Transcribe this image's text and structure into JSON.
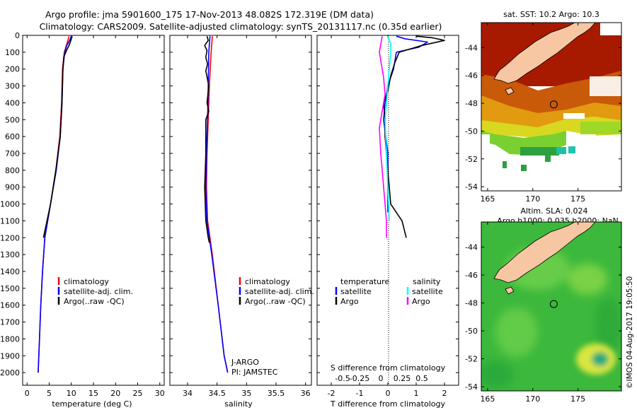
{
  "title_line1": "Argo profile: jma 5901600_175 17-Nov-2013 48.082S 172.319E (DM data)",
  "title_line2": "Climatology: CARS2009. Satellite-adjusted climatology: synTS_20131117.nc (0.35d earlier)",
  "colors": {
    "clim": "#ff0000",
    "sat": "#0000ff",
    "argo": "#000000",
    "sal_sat": "#00ffff",
    "sal_argo": "#ff00ff"
  },
  "chart_data": [
    {
      "id": "temperature",
      "type": "line",
      "xlabel": "temperature (deg C)",
      "xlim": [
        -1,
        31
      ],
      "xticks": [
        "0",
        "5",
        "10",
        "15",
        "20",
        "25",
        "30"
      ],
      "xtick_values": [
        0,
        5,
        10,
        15,
        20,
        25,
        30
      ],
      "ylim": [
        0,
        2075
      ],
      "yticks": [
        "0",
        "100",
        "200",
        "300",
        "400",
        "500",
        "600",
        "700",
        "800",
        "900",
        "1000",
        "1100",
        "1200",
        "1300",
        "1400",
        "1500",
        "1600",
        "1700",
        "1800",
        "1900",
        "2000"
      ],
      "ytick_values": [
        0,
        100,
        200,
        300,
        400,
        500,
        600,
        700,
        800,
        900,
        1000,
        1100,
        1200,
        1300,
        1400,
        1500,
        1600,
        1700,
        1800,
        1900,
        2000
      ],
      "legend": [
        "climatology",
        "satellite-adj. clim.",
        "Argo(..raw -QC)"
      ],
      "series": [
        {
          "name": "climatology",
          "color": "#ff0000",
          "points": [
            [
              9.5,
              5
            ],
            [
              9.0,
              50
            ],
            [
              8.4,
              100
            ],
            [
              8.0,
              200
            ],
            [
              7.8,
              400
            ],
            [
              7.4,
              600
            ],
            [
              6.5,
              800
            ],
            [
              5.3,
              1000
            ],
            [
              4.0,
              1200
            ],
            [
              3.5,
              1400
            ],
            [
              3.1,
              1600
            ],
            [
              2.8,
              1800
            ],
            [
              2.5,
              2000
            ]
          ]
        },
        {
          "name": "satellite-adj. clim.",
          "color": "#0000ff",
          "points": [
            [
              10.0,
              5
            ],
            [
              9.6,
              30
            ],
            [
              9.0,
              60
            ],
            [
              8.5,
              100
            ],
            [
              8.1,
              200
            ],
            [
              7.9,
              400
            ],
            [
              7.5,
              600
            ],
            [
              6.6,
              800
            ],
            [
              5.3,
              1000
            ],
            [
              4.0,
              1200
            ],
            [
              3.5,
              1400
            ],
            [
              3.1,
              1600
            ],
            [
              2.8,
              1800
            ],
            [
              2.5,
              2000
            ]
          ]
        },
        {
          "name": "Argo(..raw -QC)",
          "color": "#000000",
          "points": [
            [
              10.2,
              5
            ],
            [
              9.9,
              30
            ],
            [
              9.5,
              60
            ],
            [
              8.9,
              90
            ],
            [
              8.3,
              130
            ],
            [
              8.1,
              200
            ],
            [
              7.9,
              400
            ],
            [
              7.5,
              600
            ],
            [
              6.5,
              800
            ],
            [
              5.3,
              1000
            ],
            [
              4.1,
              1150
            ],
            [
              3.7,
              1200
            ]
          ]
        }
      ]
    },
    {
      "id": "salinity",
      "type": "line",
      "xlabel": "salinity",
      "xlim": [
        33.7,
        36.1
      ],
      "xticks": [
        "34",
        "34.5",
        "35",
        "35.5",
        "36"
      ],
      "xtick_values": [
        34,
        34.5,
        35,
        35.5,
        36
      ],
      "ylim": [
        0,
        2075
      ],
      "legend": [
        "climatology",
        "satellite-adj. clim.",
        "Argo(..raw -QC)"
      ],
      "annotation": [
        "J-ARGO",
        "PI: JAMSTEC"
      ],
      "series": [
        {
          "name": "climatology",
          "color": "#ff0000",
          "points": [
            [
              34.42,
              5
            ],
            [
              34.4,
              100
            ],
            [
              34.37,
              300
            ],
            [
              34.35,
              500
            ],
            [
              34.33,
              700
            ],
            [
              34.32,
              900
            ],
            [
              34.34,
              1100
            ],
            [
              34.42,
              1300
            ],
            [
              34.52,
              1600
            ],
            [
              34.62,
              1900
            ],
            [
              34.68,
              2000
            ]
          ]
        },
        {
          "name": "satellite-adj. clim.",
          "color": "#0000ff",
          "points": [
            [
              34.38,
              5
            ],
            [
              34.36,
              100
            ],
            [
              34.35,
              300
            ],
            [
              34.34,
              500
            ],
            [
              34.32,
              700
            ],
            [
              34.31,
              900
            ],
            [
              34.33,
              1100
            ],
            [
              34.41,
              1300
            ],
            [
              34.52,
              1600
            ],
            [
              34.62,
              1900
            ],
            [
              34.68,
              2000
            ]
          ]
        },
        {
          "name": "Argo(..raw -QC)",
          "color": "#000000",
          "points": [
            [
              34.33,
              5
            ],
            [
              34.35,
              30
            ],
            [
              34.29,
              60
            ],
            [
              34.33,
              90
            ],
            [
              34.31,
              130
            ],
            [
              34.34,
              170
            ],
            [
              34.31,
              210
            ],
            [
              34.36,
              300
            ],
            [
              34.33,
              400
            ],
            [
              34.36,
              450
            ],
            [
              34.31,
              500
            ],
            [
              34.31,
              700
            ],
            [
              34.29,
              900
            ],
            [
              34.31,
              1100
            ],
            [
              34.35,
              1200
            ],
            [
              34.37,
              1230
            ]
          ]
        }
      ]
    },
    {
      "id": "difference",
      "type": "line",
      "xlabel": "T difference from climatology",
      "xlabel_top": "S difference from climatology",
      "xlim": [
        -2.5,
        2.5
      ],
      "xticks": [
        "-2",
        "-1",
        "0",
        "1",
        "2"
      ],
      "xtick_values": [
        -2,
        -1,
        0,
        1,
        2
      ],
      "xticks_top": [
        "-0.5",
        "-0.25",
        "0",
        "0.25",
        "0.5"
      ],
      "xtick_top_values": [
        -1.6,
        -1.0,
        -0.25,
        0.5,
        1.2
      ],
      "ylim": [
        0,
        2075
      ],
      "legend_temperature": {
        "header": "temperature",
        "items": [
          "satellite",
          "Argo"
        ]
      },
      "legend_salinity": {
        "header": "salinity",
        "items": [
          "satellite",
          "Argo"
        ]
      },
      "series": [
        {
          "name": "T satellite",
          "color": "#0000ff",
          "points": [
            [
              0.3,
              5
            ],
            [
              0.6,
              20
            ],
            [
              1.4,
              40
            ],
            [
              1.1,
              70
            ],
            [
              0.3,
              100
            ],
            [
              0.2,
              200
            ],
            [
              0.0,
              300
            ],
            [
              -0.1,
              400
            ],
            [
              -0.15,
              500
            ],
            [
              0.0,
              700
            ],
            [
              0.0,
              900
            ],
            [
              0.0,
              1050
            ]
          ]
        },
        {
          "name": "T Argo",
          "color": "#000000",
          "points": [
            [
              1.0,
              5
            ],
            [
              1.6,
              15
            ],
            [
              2.0,
              30
            ],
            [
              1.2,
              60
            ],
            [
              0.8,
              80
            ],
            [
              0.4,
              100
            ],
            [
              0.25,
              160
            ],
            [
              0.1,
              240
            ],
            [
              0.0,
              330
            ],
            [
              -0.15,
              400
            ],
            [
              -0.1,
              500
            ],
            [
              -0.1,
              600
            ],
            [
              0.0,
              800
            ],
            [
              0.1,
              1000
            ],
            [
              0.5,
              1100
            ],
            [
              0.65,
              1200
            ]
          ]
        },
        {
          "name": "S satellite",
          "color": "#00ffff",
          "points": [
            [
              0.0,
              5
            ],
            [
              0.1,
              50
            ],
            [
              0.1,
              100
            ],
            [
              0.05,
              200
            ],
            [
              0.0,
              300
            ],
            [
              -0.05,
              400
            ],
            [
              -0.1,
              500
            ],
            [
              -0.05,
              700
            ],
            [
              0.0,
              900
            ],
            [
              0.05,
              1100
            ]
          ]
        },
        {
          "name": "S Argo",
          "color": "#ff00ff",
          "points": [
            [
              -0.2,
              5
            ],
            [
              -0.3,
              100
            ],
            [
              -0.15,
              250
            ],
            [
              -0.1,
              350
            ],
            [
              -0.2,
              450
            ],
            [
              -0.3,
              550
            ],
            [
              -0.25,
              700
            ],
            [
              -0.15,
              900
            ],
            [
              -0.1,
              1000
            ],
            [
              -0.05,
              1100
            ],
            [
              -0.05,
              1200
            ]
          ]
        }
      ]
    },
    {
      "id": "sst_map",
      "type": "heatmap",
      "title": "sat. SST: 10.2  Argo: 10.3",
      "xlim": [
        164.3,
        179.8
      ],
      "ylim": [
        -54.3,
        -42.2
      ],
      "xticks": [
        "165",
        "170",
        "175"
      ],
      "xtick_values": [
        165,
        170,
        175
      ],
      "yticks": [
        "-44",
        "-46",
        "-48",
        "-50",
        "-52",
        "-54"
      ],
      "ytick_values": [
        -44,
        -46,
        -48,
        -50,
        -52,
        -54
      ],
      "marker": {
        "lon": 172.32,
        "lat": -48.08
      }
    },
    {
      "id": "sla_map",
      "type": "heatmap",
      "title": "Altim. SLA: 0.024",
      "subtitle": "Argo h1000: 0.035  h2000: NaN",
      "xlim": [
        164.3,
        179.8
      ],
      "ylim": [
        -54.3,
        -42.2
      ],
      "xticks": [
        "165",
        "170",
        "175"
      ],
      "xtick_values": [
        165,
        170,
        175
      ],
      "yticks": [
        "-44",
        "-46",
        "-48",
        "-50",
        "-52",
        "-54"
      ],
      "ytick_values": [
        -44,
        -46,
        -48,
        -50,
        -52,
        -54
      ],
      "marker": {
        "lon": 172.32,
        "lat": -48.08
      }
    }
  ],
  "watermark": "©IMOS 04-Aug-2017 19:05:50"
}
